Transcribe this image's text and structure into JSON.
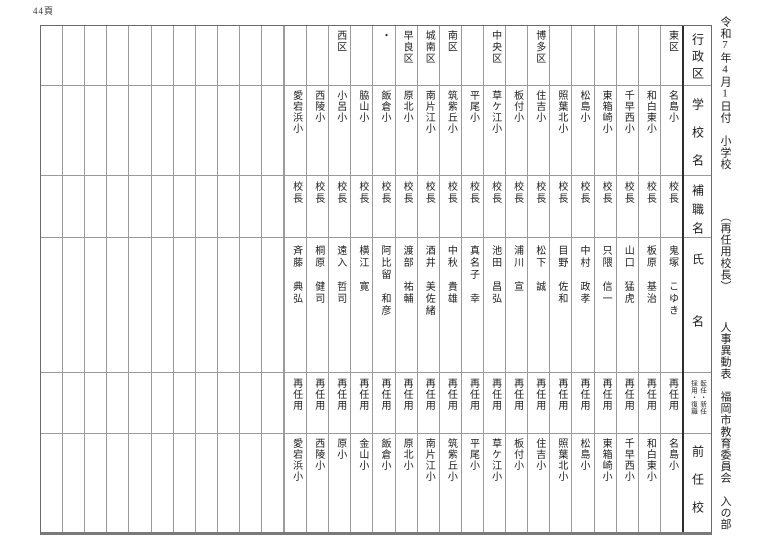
{
  "page": {
    "page_number": "44頁",
    "title": "令和7年4月1日付　小学校　　　　（再任用校長）　　　人事異動表　福岡市教育委員会　入の部"
  },
  "header": {
    "district": "行政区",
    "school": "学校名",
    "position": "補職名",
    "name": "氏名",
    "appointment_line_right": "採用・復職",
    "appointment_line_left": "転任・新任",
    "previous_school": "前任校"
  },
  "empty_column_count": 11,
  "columns": [
    {
      "district": "東区",
      "school": "名島小",
      "position": "校長",
      "name": "鬼塚　こゆき",
      "appointment": "再任用",
      "previous_school": "名島小"
    },
    {
      "district": "",
      "school": "和白東小",
      "position": "校長",
      "name": "板原　基治",
      "appointment": "再任用",
      "previous_school": "和白東小"
    },
    {
      "district": "",
      "school": "千早西小",
      "position": "校長",
      "name": "山口　猛虎",
      "appointment": "再任用",
      "previous_school": "千早西小"
    },
    {
      "district": "",
      "school": "東箱崎小",
      "position": "校長",
      "name": "只隈　信一",
      "appointment": "再任用",
      "previous_school": "東箱崎小"
    },
    {
      "district": "",
      "school": "松島小",
      "position": "校長",
      "name": "中村　政孝",
      "appointment": "再任用",
      "previous_school": "松島小"
    },
    {
      "district": "",
      "school": "照葉北小",
      "position": "校長",
      "name": "目野　佐和",
      "appointment": "再任用",
      "previous_school": "照葉北小"
    },
    {
      "district": "博多区",
      "school": "住吉小",
      "position": "校長",
      "name": "松下　誠",
      "appointment": "再任用",
      "previous_school": "住吉小"
    },
    {
      "district": "",
      "school": "板付小",
      "position": "校長",
      "name": "浦川　宣",
      "appointment": "再任用",
      "previous_school": "板付小"
    },
    {
      "district": "中央区",
      "school": "草ケ江小",
      "position": "校長",
      "name": "池田　昌弘",
      "appointment": "再任用",
      "previous_school": "草ケ江小"
    },
    {
      "district": "",
      "school": "平尾小",
      "position": "校長",
      "name": "真名子　幸",
      "appointment": "再任用",
      "previous_school": "平尾小"
    },
    {
      "district": "南区",
      "school": "筑紫丘小",
      "position": "校長",
      "name": "中秋　貴雄",
      "appointment": "再任用",
      "previous_school": "筑紫丘小"
    },
    {
      "district": "城南区",
      "school": "南片江小",
      "position": "校長",
      "name": "酒井　美佐緒",
      "appointment": "再任用",
      "previous_school": "南片江小"
    },
    {
      "district": "早良区",
      "school": "原北小",
      "position": "校長",
      "name": "渡部　祐輔",
      "appointment": "再任用",
      "previous_school": "原北小"
    },
    {
      "district": "・",
      "school": "飯倉小",
      "position": "校長",
      "name": "阿比留　和彦",
      "appointment": "再任用",
      "previous_school": "飯倉小"
    },
    {
      "district": "",
      "school": "脇山小",
      "position": "校長",
      "name": "横江　寛",
      "appointment": "再任用",
      "previous_school": "金山小"
    },
    {
      "district": "西区",
      "school": "小呂小",
      "position": "校長",
      "name": "遠入　哲司",
      "appointment": "再任用",
      "previous_school": "原小"
    },
    {
      "district": "",
      "school": "西陵小",
      "position": "校長",
      "name": "桐原　健司",
      "appointment": "再任用",
      "previous_school": "西陵小"
    },
    {
      "district": "",
      "school": "愛宕浜小",
      "position": "校長",
      "name": "斉藤　典弘",
      "appointment": "再任用",
      "previous_school": "愛宕浜小"
    }
  ]
}
